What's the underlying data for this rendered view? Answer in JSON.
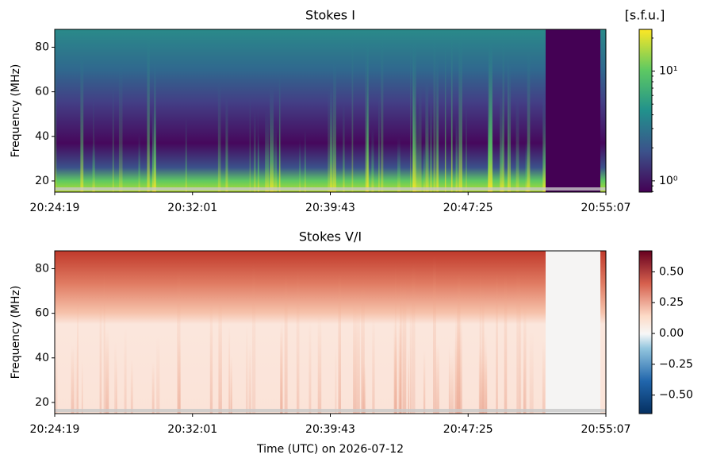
{
  "chart_data": [
    {
      "type": "heatmap",
      "title": "Stokes I",
      "ylabel": "Frequency (MHz)",
      "xlim": [
        "20:24:19",
        "20:55:07"
      ],
      "xticks": [
        "20:24:19",
        "20:32:01",
        "20:39:43",
        "20:47:25",
        "20:55:07"
      ],
      "ylim": [
        15,
        88
      ],
      "yticks": [
        20,
        40,
        60,
        80
      ],
      "colorbar": {
        "label": "[s.f.u.]",
        "scale": "log",
        "cmap": "viridis",
        "clim": [
          0.79,
          24
        ],
        "ticks": [
          {
            "value": 1,
            "label": "10⁰"
          },
          {
            "value": 10,
            "label": "10¹"
          }
        ]
      }
    },
    {
      "type": "heatmap",
      "title": "Stokes V/I",
      "ylabel": "Frequency (MHz)",
      "xlabel": "Time (UTC) on 2026-07-12",
      "xlim": [
        "20:24:19",
        "20:55:07"
      ],
      "xticks": [
        "20:24:19",
        "20:32:01",
        "20:39:43",
        "20:47:25",
        "20:55:07"
      ],
      "ylim": [
        15,
        88
      ],
      "yticks": [
        20,
        40,
        60,
        80
      ],
      "colorbar": {
        "scale": "linear",
        "cmap": "RdBu_r",
        "clim": [
          -0.65,
          0.67
        ],
        "ticks": [
          {
            "value": -0.5,
            "label": "−0.50"
          },
          {
            "value": -0.25,
            "label": "−0.25"
          },
          {
            "value": 0,
            "label": "0.00"
          },
          0.25,
          {
            "value": 0.5,
            "label": "0.50"
          }
        ]
      }
    }
  ]
}
